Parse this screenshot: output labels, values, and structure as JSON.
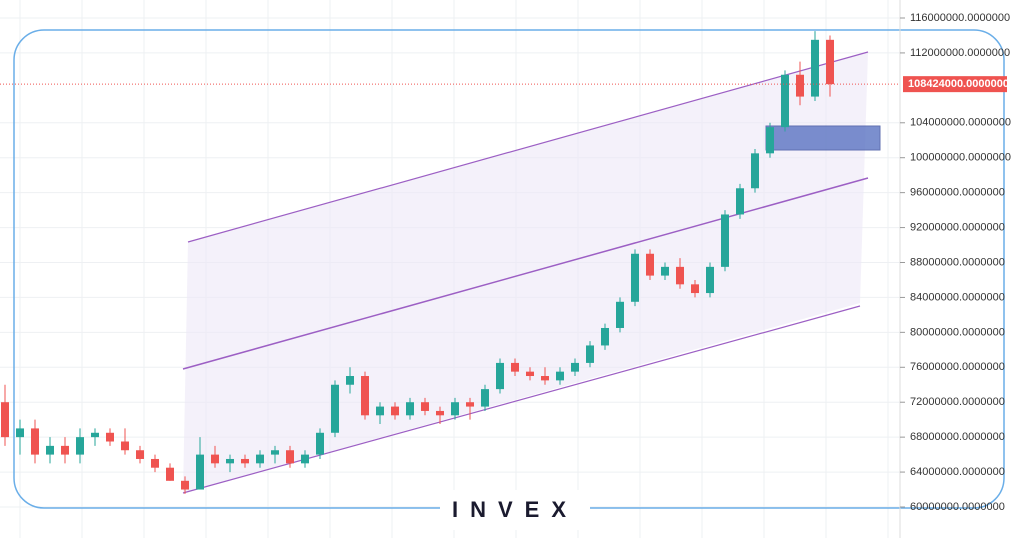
{
  "chart_data": {
    "type": "candlestick",
    "ylim": [
      56450000,
      118060000
    ],
    "yticks": [
      {
        "value": 116000000,
        "label": "116000000.0000000"
      },
      {
        "value": 112000000,
        "label": "112000000.0000000"
      },
      {
        "value": 104000000,
        "label": "104000000.0000000"
      },
      {
        "value": 100000000,
        "label": "100000000.0000000"
      },
      {
        "value": 96000000,
        "label": "96000000.0000000"
      },
      {
        "value": 92000000,
        "label": "92000000.0000000"
      },
      {
        "value": 88000000,
        "label": "88000000.0000000"
      },
      {
        "value": 84000000,
        "label": "84000000.0000000"
      },
      {
        "value": 80000000,
        "label": "80000000.0000000"
      },
      {
        "value": 76000000,
        "label": "76000000.0000000"
      },
      {
        "value": 72000000,
        "label": "72000000.0000000"
      },
      {
        "value": 68000000,
        "label": "68000000.0000000"
      },
      {
        "value": 64000000,
        "label": "64000000.0000000"
      },
      {
        "value": 60000000,
        "label": "60000000.0000000"
      }
    ],
    "grid": true,
    "up_color": "#26a69a",
    "down_color": "#ef5350",
    "last_price": {
      "value": 108424000,
      "label": "108424000.0000000"
    },
    "watermark": "INVEX",
    "open": [
      72000000,
      68000000,
      69000000,
      66000000,
      67000000,
      66000000,
      68000000,
      68500000,
      67500000,
      66500000,
      65500000,
      64500000,
      63000000,
      62000000,
      66000000,
      65000000,
      65500000,
      65000000,
      66000000,
      66500000,
      65000000,
      66000000,
      68500000,
      74000000,
      75000000,
      70500000,
      71500000,
      70500000,
      72000000,
      71000000,
      70500000,
      72000000,
      71500000,
      73500000,
      76500000,
      75500000,
      75000000,
      74500000,
      75500000,
      76500000,
      78500000,
      80500000,
      83500000,
      89000000,
      86500000,
      87500000,
      85500000,
      84500000,
      87500000,
      93500000,
      96500000,
      100500000,
      103500000,
      109500000,
      107000000,
      113500000
    ],
    "high": [
      74000000,
      70000000,
      70000000,
      68000000,
      68000000,
      69000000,
      69000000,
      69000000,
      69000000,
      67000000,
      66000000,
      65000000,
      63500000,
      68000000,
      67000000,
      66000000,
      66000000,
      66500000,
      67000000,
      67000000,
      66500000,
      69000000,
      74500000,
      76000000,
      75500000,
      72000000,
      72000000,
      72500000,
      72500000,
      71500000,
      72500000,
      72500000,
      74000000,
      77000000,
      77000000,
      76000000,
      76000000,
      76000000,
      77000000,
      79000000,
      81000000,
      84000000,
      89500000,
      89500000,
      88000000,
      88500000,
      86000000,
      88000000,
      94000000,
      97000000,
      101000000,
      104000000,
      110000000,
      111000000,
      114500000,
      114000000
    ],
    "low": [
      67000000,
      66000000,
      65000000,
      65000000,
      65000000,
      65000000,
      67000000,
      67000000,
      66000000,
      65000000,
      64000000,
      63000000,
      61500000,
      62000000,
      64500000,
      64000000,
      64500000,
      64500000,
      65000000,
      64500000,
      64500000,
      65500000,
      68000000,
      73000000,
      70000000,
      69500000,
      70000000,
      70000000,
      70500000,
      69500000,
      70000000,
      70000000,
      71000000,
      73000000,
      75000000,
      74500000,
      74000000,
      74000000,
      75000000,
      76000000,
      78000000,
      80000000,
      83000000,
      86000000,
      86000000,
      85000000,
      84000000,
      84000000,
      87000000,
      93000000,
      96000000,
      100000000,
      103000000,
      106000000,
      106500000,
      107000000
    ],
    "close": [
      68000000,
      69000000,
      66000000,
      67000000,
      66000000,
      68000000,
      68500000,
      67500000,
      66500000,
      65500000,
      64500000,
      63000000,
      62000000,
      66000000,
      65000000,
      65500000,
      65000000,
      66000000,
      66500000,
      65000000,
      66000000,
      68500000,
      74000000,
      75000000,
      70500000,
      71500000,
      70500000,
      72000000,
      71000000,
      70500000,
      72000000,
      71500000,
      73500000,
      76500000,
      75500000,
      75000000,
      74500000,
      75500000,
      76500000,
      78500000,
      80500000,
      83500000,
      89000000,
      86500000,
      87500000,
      85500000,
      84500000,
      87500000,
      93500000,
      96500000,
      100500000,
      103500000,
      109500000,
      107000000,
      113500000,
      108424000
    ]
  }
}
